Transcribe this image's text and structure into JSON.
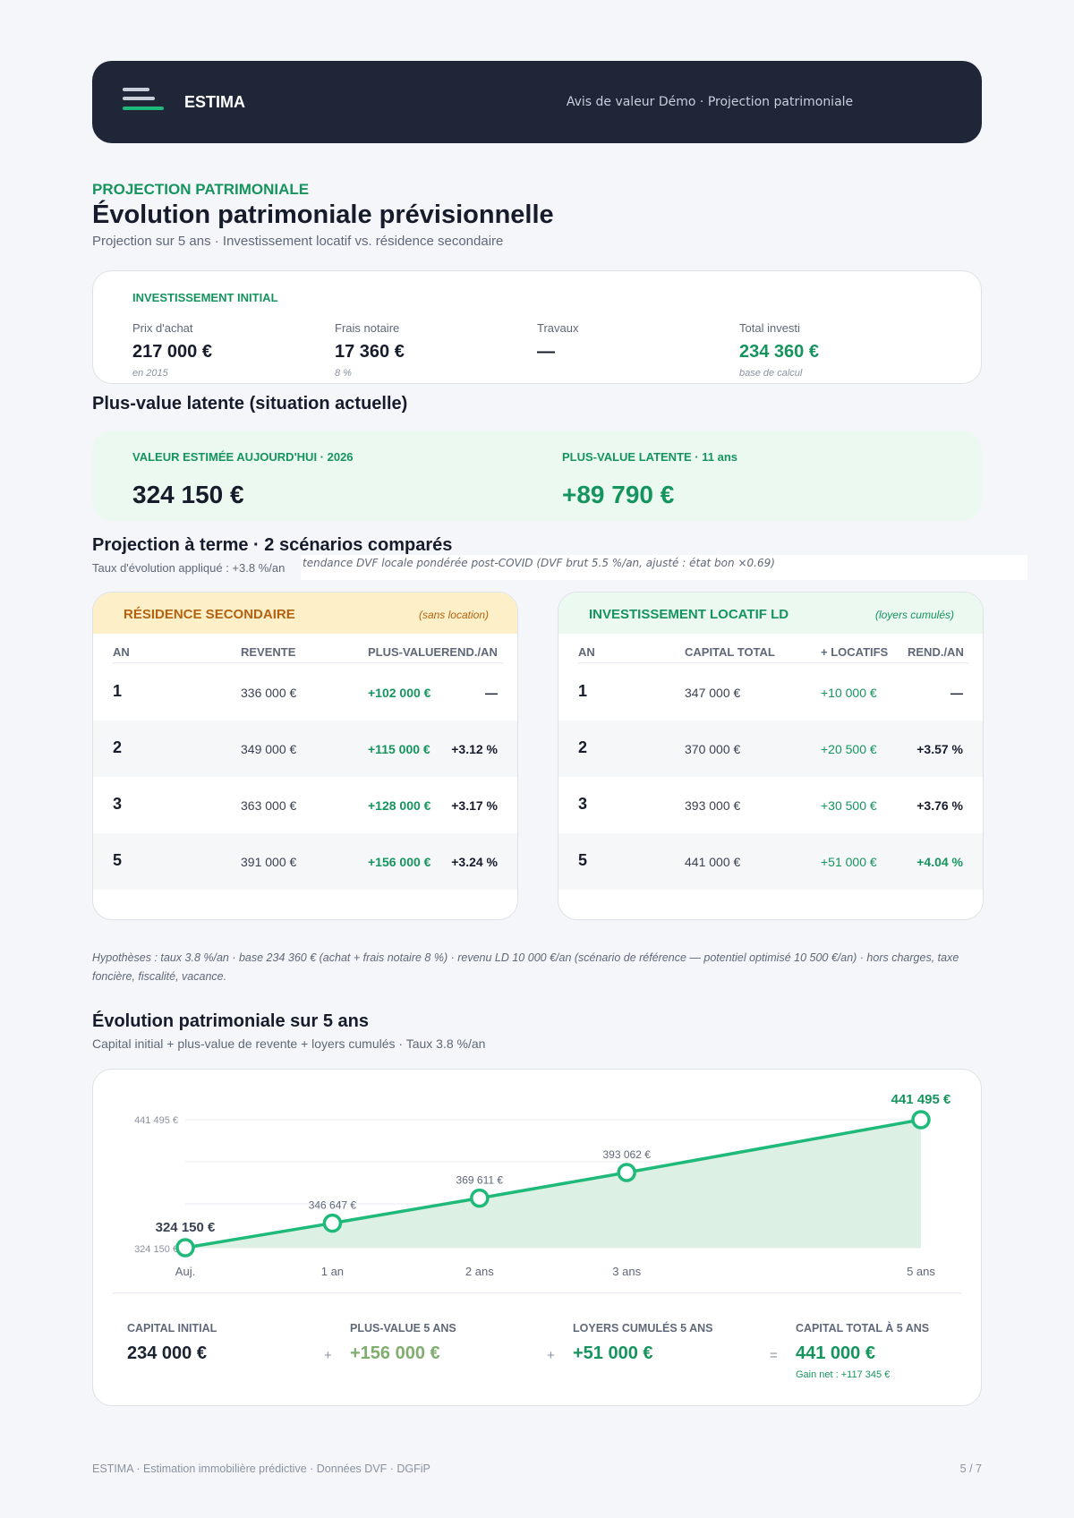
{
  "header": {
    "brand": "ESTIMA",
    "subtitle": "Avis de valeur Démo · Projection patrimoniale"
  },
  "page": {
    "eyebrow": "PROJECTION PATRIMONIALE",
    "title": "Évolution patrimoniale prévisionnelle",
    "subtitle": "Projection sur 5 ans · Investissement locatif vs. résidence secondaire"
  },
  "investment": {
    "label": "INVESTISSEMENT INITIAL",
    "items": [
      {
        "label": "Prix d'achat",
        "value": "217 000 €",
        "note": "en 2015"
      },
      {
        "label": "Frais notaire",
        "value": "17 360 €",
        "note": "8 %"
      },
      {
        "label": "Travaux",
        "value": "—",
        "note": ""
      },
      {
        "label": "Total investi",
        "value": "234 360 €",
        "note": "base de calcul"
      }
    ]
  },
  "latent": {
    "heading": "Plus-value latente (situation actuelle)",
    "value_label": "VALEUR ESTIMÉE AUJOURD'HUI · 2026",
    "value": "324 150 €",
    "gain_label": "PLUS-VALUE LATENTE · 11 ans",
    "gain": "+89 790 €"
  },
  "projection": {
    "heading": "Projection à terme · 2 scénarios comparés",
    "rate": "Taux d'évolution appliqué : +3.8 %/an",
    "trend": "tendance DVF locale pondérée post-COVID (DVF brut 5.5 %/an, ajusté : état bon ×0.69)"
  },
  "scenario_a": {
    "title": "RÉSIDENCE SECONDAIRE",
    "note": "(sans location)",
    "columns": [
      "AN",
      "REVENTE",
      "PLUS-VALUE",
      "REND./AN"
    ],
    "rows": [
      {
        "an": "1",
        "v1": "336 000 €",
        "v2": "+102 000 €",
        "v3": "—"
      },
      {
        "an": "2",
        "v1": "349 000 €",
        "v2": "+115 000 €",
        "v3": "+3.12 %"
      },
      {
        "an": "3",
        "v1": "363 000 €",
        "v2": "+128 000 €",
        "v3": "+3.17 %"
      },
      {
        "an": "5",
        "v1": "391 000 €",
        "v2": "+156 000 €",
        "v3": "+3.24 %"
      }
    ],
    "colors": {
      "header_bg": "#fdf0c9",
      "title": "#b4620f"
    }
  },
  "scenario_b": {
    "title": "INVESTISSEMENT LOCATIF LD",
    "note": "(loyers cumulés)",
    "columns": [
      "AN",
      "CAPITAL TOTAL",
      "+ LOCATIFS",
      "REND./AN"
    ],
    "rows": [
      {
        "an": "1",
        "v1": "347 000 €",
        "v2": "+10 000 €",
        "v3": "—"
      },
      {
        "an": "2",
        "v1": "370 000 €",
        "v2": "+20 500 €",
        "v3": "+3.57 %"
      },
      {
        "an": "3",
        "v1": "393 000 €",
        "v2": "+30 500 €",
        "v3": "+3.76 %"
      },
      {
        "an": "5",
        "v1": "441 000 €",
        "v2": "+51 000 €",
        "v3": "+4.04 %"
      }
    ],
    "colors": {
      "header_bg": "#ebf9f1",
      "title": "#16945e"
    }
  },
  "hypotheses": "Hypothèses : taux 3.8 %/an · base 234 360 € (achat + frais notaire 8 %) · revenu LD 10 000 €/an (scénario de référence — potentiel optimisé 10 500 €/an) · hors charges, taxe foncière, fiscalité, vacance.",
  "evolution": {
    "heading": "Évolution patrimoniale sur 5 ans",
    "subtitle": "Capital initial + plus-value de revente + loyers cumulés · Taux 3.8 %/an"
  },
  "chart_data": {
    "type": "area",
    "x": [
      0,
      1,
      2,
      3,
      5
    ],
    "categories": [
      "Auj.",
      "1 an",
      "2 ans",
      "3 ans",
      "5 ans"
    ],
    "values": [
      324150,
      346647,
      369611,
      393062,
      441495
    ],
    "labels": [
      "324 150 €",
      "346 647 €",
      "369 611 €",
      "393 062 €",
      "441 495 €"
    ],
    "ylim": [
      324150,
      441495
    ],
    "y_ticks": [
      "324 150 €",
      "441 495 €"
    ],
    "grid": true,
    "colors": {
      "line": "#1fba7a",
      "fill": "#dcf0e3"
    }
  },
  "summary": [
    {
      "label": "CAPITAL INITIAL",
      "value": "234 000 €",
      "color": "#1b2230",
      "note": ""
    },
    {
      "label": "PLUS-VALUE 5 ANS",
      "value": "+156 000 €",
      "color": "#7fae6e",
      "note": ""
    },
    {
      "label": "LOYERS CUMULÉS 5 ANS",
      "value": "+51 000 €",
      "color": "#16945e",
      "note": ""
    },
    {
      "label": "CAPITAL TOTAL À 5 ANS",
      "value": "441 000 €",
      "color": "#16945e",
      "note": "Gain net : +117 345 €"
    }
  ],
  "operators": [
    "+",
    "+",
    "="
  ],
  "footer": {
    "left": "ESTIMA · Estimation immobilière prédictive · Données DVF · DGFiP",
    "right": "5 / 7"
  }
}
